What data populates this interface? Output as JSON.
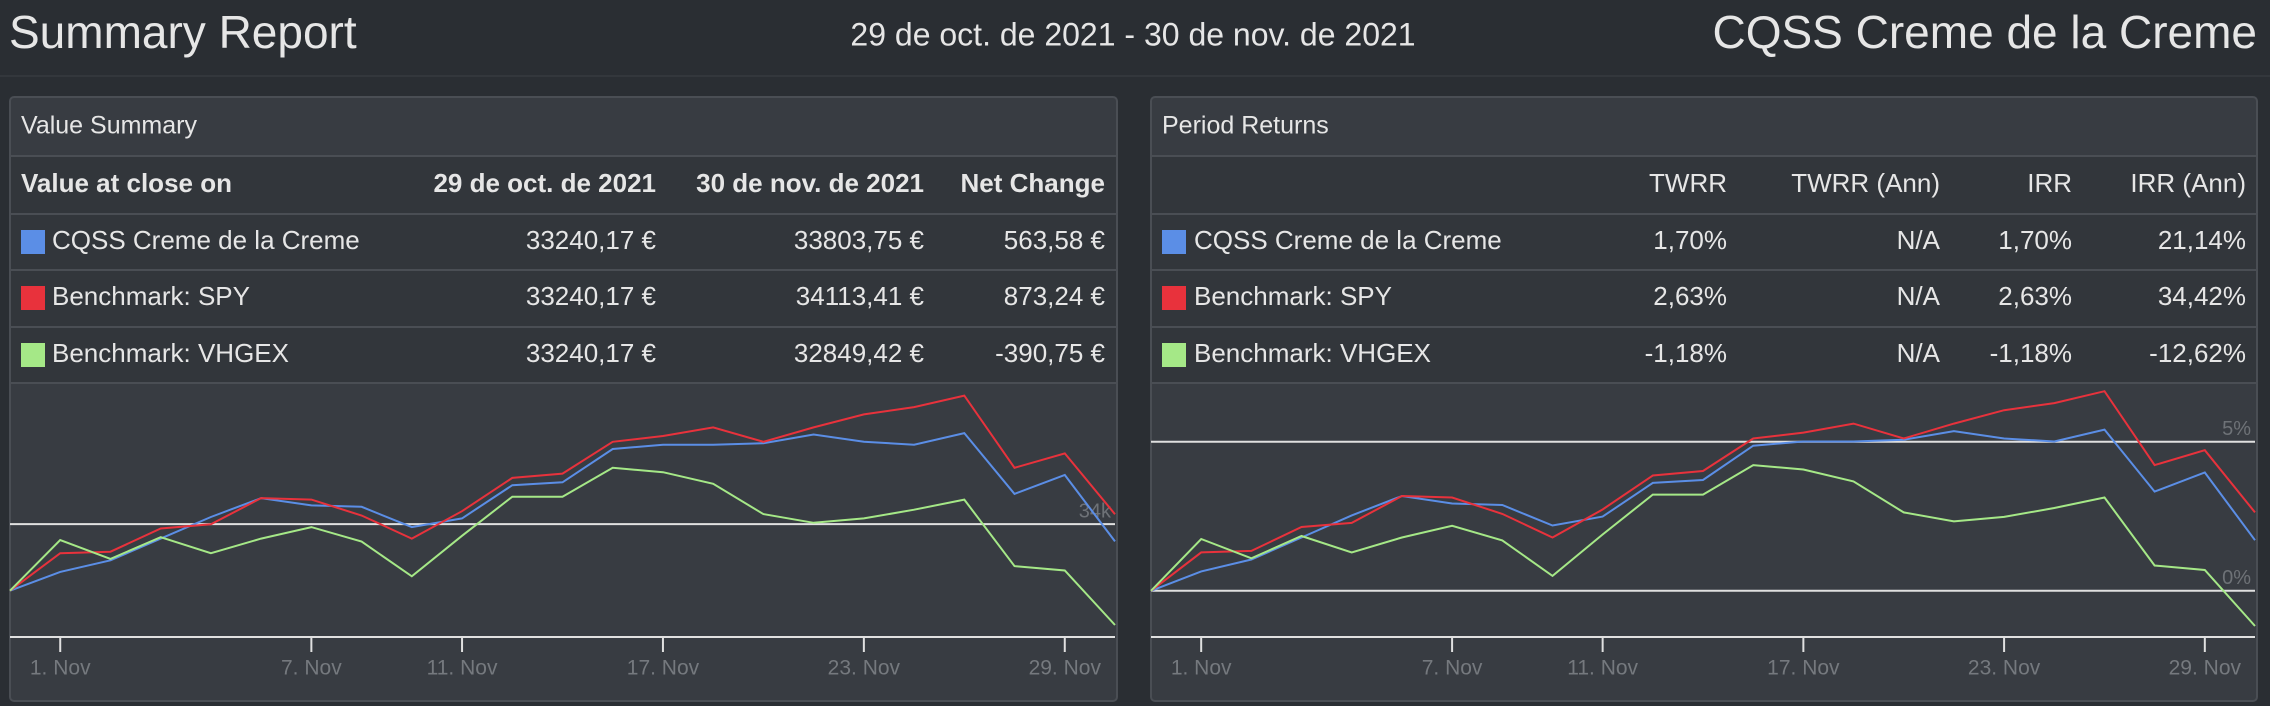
{
  "header": {
    "title": "Summary Report",
    "date_range": "29 de oct. de 2021 - 30 de nov. de 2021",
    "portfolio": "CQSS Creme de la Creme"
  },
  "value_summary": {
    "title": "Value Summary",
    "columns": [
      "Value at close on",
      "29 de oct. de 2021",
      "30 de nov. de 2021",
      "Net Change"
    ],
    "rows": [
      {
        "name": "CQSS Creme de la Creme",
        "cells": [
          "33240,17 €",
          "33803,75 €",
          "563,58 €"
        ]
      },
      {
        "name": "Benchmark: SPY",
        "cells": [
          "33240,17 €",
          "34113,41 €",
          "873,24 €"
        ]
      },
      {
        "name": "Benchmark: VHGEX",
        "cells": [
          "33240,17 €",
          "32849,42 €",
          "-390,75 €"
        ]
      }
    ]
  },
  "period_returns": {
    "title": "Period Returns",
    "columns": [
      "TWRR",
      "TWRR (Ann)",
      "IRR",
      "IRR (Ann)"
    ],
    "rows": [
      {
        "name": "CQSS Creme de la Creme",
        "cells": [
          "1,70%",
          "N/A",
          "1,70%",
          "21,14%"
        ]
      },
      {
        "name": "Benchmark: SPY",
        "cells": [
          "2,63%",
          "N/A",
          "2,63%",
          "34,42%"
        ]
      },
      {
        "name": "Benchmark: VHGEX",
        "cells": [
          "-1,18%",
          "N/A",
          "-1,18%",
          "-12,62%"
        ]
      }
    ]
  },
  "chart_data": [
    {
      "type": "line",
      "categories": [
        null,
        "1. Nov",
        null,
        null,
        null,
        null,
        "7. Nov",
        null,
        null,
        "11. Nov",
        null,
        null,
        null,
        "17. Nov",
        null,
        null,
        null,
        "23. Nov",
        null,
        null,
        null,
        "29. Nov",
        null
      ],
      "series": [
        {
          "color": "#5b8ee6",
          "values": [
            33240.17,
            33455,
            33587,
            33835,
            34082,
            34297,
            34214,
            34198,
            33967,
            34066,
            34445,
            34478,
            34858,
            34907,
            34907,
            34924,
            35023,
            34940,
            34907,
            35039,
            34346,
            34561,
            33803.75
          ]
        },
        {
          "color": "#e8323c",
          "values": [
            33240.17,
            33669,
            33686,
            33950,
            33999,
            34297,
            34280,
            34099,
            33835,
            34148,
            34528,
            34577,
            34940,
            35006,
            35105,
            34940,
            35105,
            35253,
            35336,
            35468,
            34643,
            34808,
            34113.41
          ]
        },
        {
          "color": "#a5e887",
          "values": [
            33240.17,
            33818,
            33603,
            33851,
            33669,
            33835,
            33966,
            33801,
            33405,
            33867,
            34313,
            34313,
            34643,
            34593,
            34461,
            34115,
            34016,
            34066,
            34165,
            34280,
            33521,
            33471,
            32849.42
          ]
        }
      ],
      "ylim": [
        32712,
        35600
      ],
      "yticks": [
        {
          "value": 34000,
          "label": "34k"
        }
      ],
      "grid": true
    },
    {
      "type": "line",
      "categories": [
        null,
        "1. Nov",
        null,
        null,
        null,
        null,
        "7. Nov",
        null,
        null,
        "11. Nov",
        null,
        null,
        null,
        "17. Nov",
        null,
        null,
        null,
        "23. Nov",
        null,
        null,
        null,
        "29. Nov",
        null
      ],
      "series": [
        {
          "color": "#5b8ee6",
          "values": [
            0,
            0.65,
            1.05,
            1.79,
            2.53,
            3.18,
            2.93,
            2.88,
            2.19,
            2.49,
            3.62,
            3.72,
            4.87,
            5.01,
            5.01,
            5.07,
            5.36,
            5.11,
            5.01,
            5.41,
            3.33,
            3.97,
            1.7
          ]
        },
        {
          "color": "#e8323c",
          "values": [
            0,
            1.29,
            1.34,
            2.14,
            2.28,
            3.18,
            3.13,
            2.58,
            1.79,
            2.73,
            3.87,
            4.02,
            5.11,
            5.31,
            5.61,
            5.11,
            5.61,
            6.06,
            6.3,
            6.7,
            4.22,
            4.72,
            2.63
          ]
        },
        {
          "color": "#a5e887",
          "values": [
            0,
            1.74,
            1.09,
            1.84,
            1.29,
            1.79,
            2.18,
            1.69,
            0.5,
            1.89,
            3.23,
            3.23,
            4.22,
            4.07,
            3.67,
            2.63,
            2.33,
            2.48,
            2.78,
            3.13,
            0.85,
            0.7,
            -1.18
          ]
        }
      ],
      "ylim": [
        -1.55,
        6.94
      ],
      "yticks": [
        {
          "value": 0,
          "label": "0%"
        },
        {
          "value": 5,
          "label": "5%"
        }
      ],
      "grid": true
    }
  ]
}
